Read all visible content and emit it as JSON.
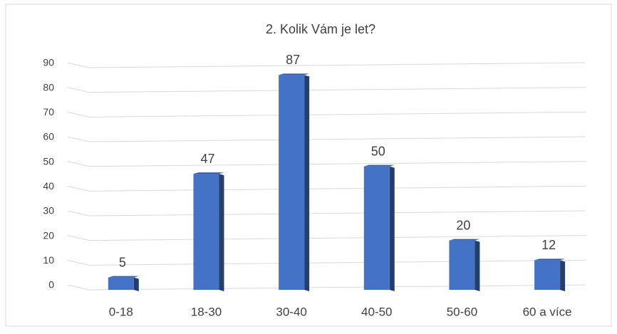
{
  "chart_data": {
    "type": "bar",
    "title": "2. Kolik Vám je let?",
    "categories": [
      "0-18",
      "18-30",
      "30-40",
      "40-50",
      "50-60",
      "60 a více"
    ],
    "values": [
      5,
      47,
      87,
      50,
      20,
      12
    ],
    "color": "#4472c4",
    "ylim": [
      0,
      90
    ],
    "yticks": [
      0,
      10,
      20,
      30,
      40,
      50,
      60,
      70,
      80,
      90
    ],
    "grid": true
  }
}
